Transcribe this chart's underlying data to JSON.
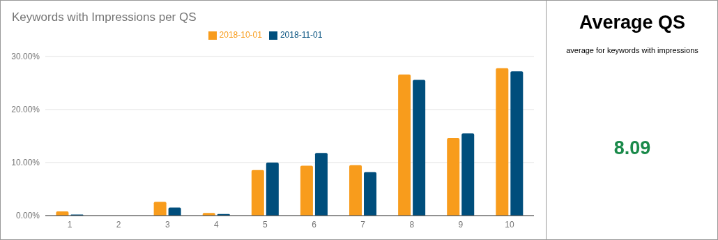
{
  "chart_data": [
    {
      "type": "bar",
      "title": "Keywords with Impressions per QS",
      "categories": [
        "1",
        "2",
        "3",
        "4",
        "5",
        "6",
        "7",
        "8",
        "9",
        "10"
      ],
      "series": [
        {
          "name": "2018-10-01",
          "color": "#f89c1c",
          "values": [
            0.8,
            0,
            2.6,
            0.5,
            8.6,
            9.4,
            9.5,
            26.6,
            14.6,
            27.8
          ]
        },
        {
          "name": "2018-11-01",
          "color": "#004e7c",
          "values": [
            0.2,
            0,
            1.5,
            0.3,
            10.0,
            11.8,
            8.2,
            25.6,
            15.5,
            27.2
          ]
        }
      ],
      "ylim": [
        0,
        30
      ],
      "yticks": [
        {
          "value": 0,
          "label": "0.00%"
        },
        {
          "value": 10,
          "label": "10.00%"
        },
        {
          "value": 20,
          "label": "20.00%"
        },
        {
          "value": 30,
          "label": "30.00%"
        }
      ],
      "grid": "y",
      "legend": "top"
    },
    {
      "type": "other",
      "title": "Average QS",
      "subtitle": "average for keywords with impressions",
      "values": [
        8.09
      ],
      "data_labels": true,
      "color": "#1a8a4a"
    }
  ]
}
